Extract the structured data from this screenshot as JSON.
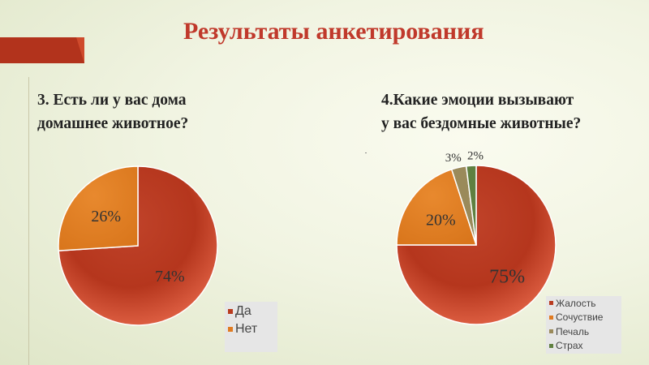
{
  "title": "Результаты анкетирования",
  "colors": {
    "accent": "#b2331c"
  },
  "chart_data": [
    {
      "type": "pie",
      "title": "3. Есть ли у вас дома домашнее животное?",
      "title_lines": [
        "3. Есть ли у вас дома",
        "домашнее животное?"
      ],
      "categories": [
        "Да",
        "Нет"
      ],
      "values": [
        74,
        26
      ],
      "labels": [
        "74%",
        "26%"
      ],
      "colors": [
        "#b93b1f",
        "#e07b22"
      ],
      "legend": "bottom-right"
    },
    {
      "type": "pie",
      "title": "4.Какие эмоции вызывают у вас бездомные животные?",
      "title_lines": [
        "4.Какие эмоции вызывают",
        "у вас бездомные животные?"
      ],
      "categories": [
        "Жалость",
        "Сочуствие",
        "Печаль",
        "Страх"
      ],
      "values": [
        75,
        20,
        3,
        2
      ],
      "labels": [
        "75%",
        "20%",
        "3%",
        "2%"
      ],
      "colors": [
        "#b93b1f",
        "#e07b22",
        "#9a8a5a",
        "#5f8040"
      ],
      "legend": "bottom-right"
    }
  ]
}
